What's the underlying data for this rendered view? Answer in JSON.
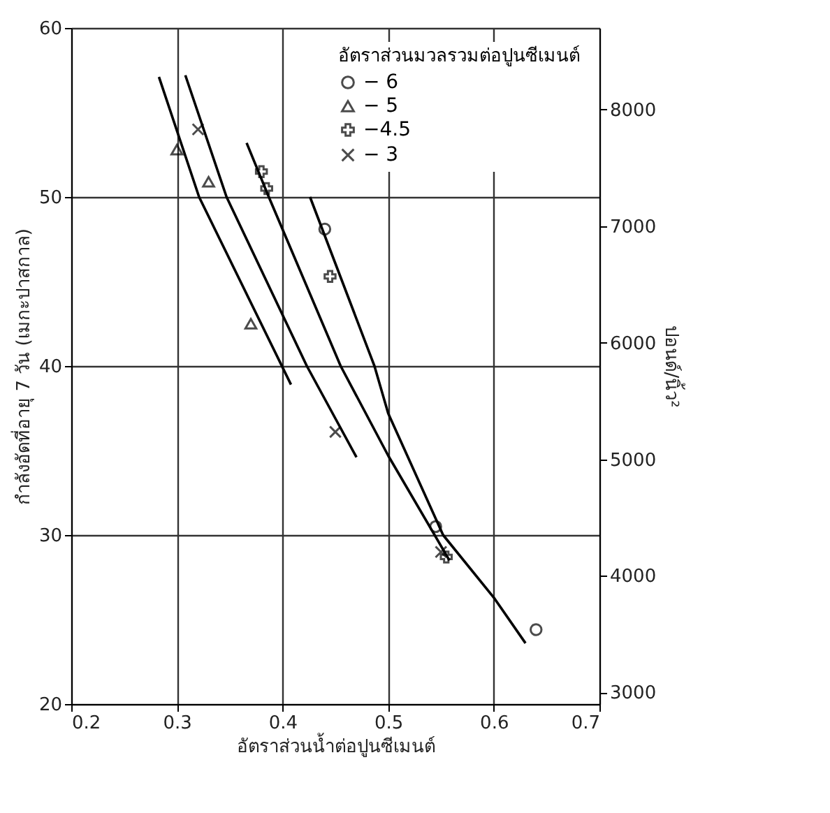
{
  "chart_data": {
    "type": "scatter",
    "xlabel": "อัตราส่วนน้ำต่อปูนซีเมนต์",
    "ylabel": "กำลังอัดที่อายุ 7 วัน (เมกะปาสกาล)",
    "y2label": "ปอนด์/นิ้ว²",
    "legend_title": "อัตราส่วนมวลรวมต่อปูนซีเมนต์",
    "xlim": [
      0.2,
      0.7
    ],
    "xticks": [
      0.2,
      0.3,
      0.4,
      0.5,
      0.6,
      0.7
    ],
    "ylim": [
      20,
      60
    ],
    "yticks": [
      20,
      30,
      40,
      50,
      60
    ],
    "y2lim": [
      2900,
      8700
    ],
    "y2ticks": [
      3000,
      4000,
      5000,
      6000,
      7000,
      8000
    ],
    "grid": true,
    "legend": "top right",
    "line_style": "solid",
    "series": [
      {
        "name": "− 6",
        "type": "scatter",
        "marker": "circle",
        "color": "#000000",
        "x": [
          0.44,
          0.545,
          0.64
        ],
        "values": [
          48.1,
          30.5,
          24.4
        ]
      },
      {
        "name": "− 5",
        "type": "scatter",
        "marker": "triangle",
        "color": "#000000",
        "x": [
          0.3,
          0.33,
          0.37
        ],
        "values": [
          52.8,
          50.9,
          42.5
        ]
      },
      {
        "name": "−4.5",
        "type": "scatter",
        "marker": "plus",
        "color": "#000000",
        "x": [
          0.38,
          0.385,
          0.445,
          0.555
        ],
        "values": [
          51.5,
          50.5,
          45.3,
          28.7
        ]
      },
      {
        "name": "− 3",
        "type": "scatter",
        "marker": "cross",
        "color": "#000000",
        "x": [
          0.32,
          0.45,
          0.55
        ],
        "values": [
          54.0,
          36.1,
          29.0
        ]
      },
      {
        "type": "line",
        "marker": "none",
        "color": "#000000",
        "x": [
          0.283,
          0.321,
          0.408
        ],
        "values": [
          57.1,
          50,
          38.9
        ]
      },
      {
        "type": "line",
        "marker": "none",
        "color": "#000000",
        "x": [
          0.308,
          0.347,
          0.423,
          0.47
        ],
        "values": [
          57.2,
          50,
          40,
          34.6
        ]
      },
      {
        "type": "line",
        "marker": "none",
        "color": "#000000",
        "x": [
          0.366,
          0.387,
          0.455,
          0.5,
          0.558
        ],
        "values": [
          53.2,
          50,
          40,
          34.7,
          28.5
        ]
      },
      {
        "type": "line",
        "marker": "none",
        "color": "#000000",
        "x": [
          0.426,
          0.487,
          0.5,
          0.552,
          0.6,
          0.63
        ],
        "values": [
          50,
          40,
          37.2,
          30,
          26.3,
          23.6
        ]
      }
    ]
  }
}
